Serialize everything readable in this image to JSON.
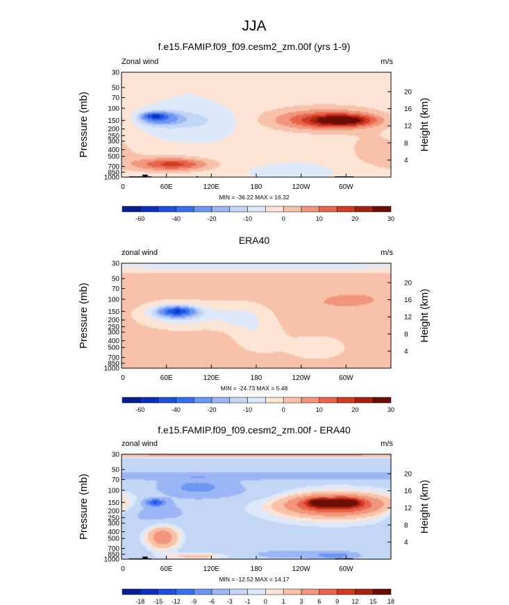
{
  "figure_title": "JJA",
  "colors": {
    "scale_main": [
      "#081d8f",
      "#0a2fbe",
      "#1d4fe0",
      "#3a6ef0",
      "#6d95f2",
      "#9bb6f4",
      "#c4d6f6",
      "#dde9fa",
      "#fde4d5",
      "#f8c2aa",
      "#f1957d",
      "#e8644a",
      "#d13b22",
      "#a5210f",
      "#6b0d05"
    ],
    "scale_diff": [
      "#081d8f",
      "#0a2fbe",
      "#1d4fe0",
      "#3a6ef0",
      "#6d95f2",
      "#9bb6f4",
      "#c4d6f6",
      "#dde9fa",
      "#fde4d5",
      "#f8c2aa",
      "#f1957d",
      "#e8644a",
      "#d13b22",
      "#a5210f",
      "#6b0d05"
    ],
    "topography": "#000000"
  },
  "chart_data": [
    {
      "type": "contour",
      "panel": "model",
      "title": "f.e15.FAMIP.f09_f09.cesm2_zm.00f (yrs 1-9)",
      "left_label": "Zonal wind",
      "right_label": "m/s",
      "ylabel": "Pressure (mb)",
      "y2label": "Height (km)",
      "x_ticks": [
        "0",
        "60E",
        "120E",
        "180",
        "120W",
        "60W"
      ],
      "x_values": [
        0,
        60,
        120,
        180,
        240,
        300
      ],
      "xlim": [
        0,
        360
      ],
      "y_ticks": [
        "30",
        "50",
        "70",
        "100",
        "150",
        "200",
        "250",
        "300",
        "400",
        "500",
        "700",
        "850",
        "1000"
      ],
      "y_values": [
        30,
        50,
        70,
        100,
        150,
        200,
        250,
        300,
        400,
        500,
        700,
        850,
        1000
      ],
      "ylim": [
        1000,
        30
      ],
      "y2_ticks": [
        "4",
        "8",
        "12",
        "16",
        "20"
      ],
      "y2_values_km": [
        4,
        8,
        12,
        16,
        20
      ],
      "stats": "MIN = -36.22  MAX =  16.32",
      "min": -36.22,
      "max": 16.32,
      "colorbar_labels": [
        "-60",
        "-40",
        "-20",
        "-10",
        "0",
        "10",
        "20",
        "30"
      ],
      "background_value": -5,
      "features": [
        {
          "lon": 45,
          "p": 130,
          "dlon": 14,
          "dp": 0.1,
          "value": -36
        },
        {
          "lon": 50,
          "p": 140,
          "dlon": 28,
          "dp": 0.22,
          "value": -25
        },
        {
          "lon": 85,
          "p": 150,
          "dlon": 65,
          "dp": 0.38,
          "value": -12
        },
        {
          "lon": 295,
          "p": 150,
          "dlon": 35,
          "dp": 0.16,
          "value": 16
        },
        {
          "lon": 280,
          "p": 150,
          "dlon": 70,
          "dp": 0.3,
          "value": 9
        },
        {
          "lon": 270,
          "p": 140,
          "dlon": 95,
          "dp": 0.55,
          "value": 4
        },
        {
          "lon": 70,
          "p": 650,
          "dlon": 45,
          "dp": 0.18,
          "value": 8
        },
        {
          "lon": 60,
          "p": 650,
          "dlon": 70,
          "dp": 0.35,
          "value": 4
        },
        {
          "lon": 340,
          "p": 400,
          "dlon": 40,
          "dp": 0.5,
          "value": 3
        },
        {
          "lon": 215,
          "p": 800,
          "dlon": 60,
          "dp": 0.15,
          "value": -6
        }
      ],
      "topography": [
        {
          "lon_start": 10,
          "lon_end": 40,
          "p_top": 975
        },
        {
          "lon_start": 28,
          "lon_end": 35,
          "p_top": 920
        },
        {
          "lon_start": 100,
          "lon_end": 102,
          "p_top": 970
        },
        {
          "lon_start": 285,
          "lon_end": 310,
          "p_top": 975
        }
      ]
    },
    {
      "type": "contour",
      "panel": "obs",
      "title": "ERA40",
      "left_label": "zonal wind",
      "right_label": "m/s",
      "ylabel": "Pressure (mb)",
      "y2label": "Height (km)",
      "x_ticks": [
        "0",
        "60E",
        "120E",
        "180",
        "120W",
        "60W"
      ],
      "x_values": [
        0,
        60,
        120,
        180,
        240,
        300
      ],
      "xlim": [
        0,
        360
      ],
      "y_ticks": [
        "30",
        "50",
        "70",
        "100",
        "150",
        "200",
        "250",
        "300",
        "400",
        "500",
        "700",
        "850",
        "1000"
      ],
      "y_values": [
        30,
        50,
        70,
        100,
        150,
        200,
        250,
        300,
        400,
        500,
        700,
        850,
        1000
      ],
      "ylim": [
        1000,
        30
      ],
      "y2_ticks": [
        "4",
        "8",
        "12",
        "16",
        "20"
      ],
      "y2_values_km": [
        4,
        8,
        12,
        16,
        20
      ],
      "stats": "MIN = -24.73  MAX =  5.48",
      "min": -24.73,
      "max": 5.48,
      "colorbar_labels": [
        "-60",
        "-40",
        "-20",
        "-10",
        "0",
        "10",
        "20",
        "30"
      ],
      "background_value": 2,
      "features": [
        {
          "lon": 180,
          "p": 33,
          "dlon": 400,
          "dp": 0.2,
          "value": -7
        },
        {
          "lon": 75,
          "p": 150,
          "dlon": 18,
          "dp": 0.12,
          "value": -24
        },
        {
          "lon": 72,
          "p": 150,
          "dlon": 30,
          "dp": 0.22,
          "value": -16
        },
        {
          "lon": 80,
          "p": 170,
          "dlon": 50,
          "dp": 0.4,
          "value": -9
        },
        {
          "lon": 160,
          "p": 180,
          "dlon": 35,
          "dp": 0.45,
          "value": -6
        },
        {
          "lon": 185,
          "p": 350,
          "dlon": 30,
          "dp": 0.5,
          "value": -4
        },
        {
          "lon": 320,
          "p": 100,
          "dlon": 50,
          "dp": 0.35,
          "value": 5
        },
        {
          "lon": 280,
          "p": 110,
          "dlon": 45,
          "dp": 0.3,
          "value": 4
        },
        {
          "lon": 85,
          "p": 700,
          "dlon": 50,
          "dp": 0.3,
          "value": 4
        },
        {
          "lon": 260,
          "p": 500,
          "dlon": 40,
          "dp": 0.4,
          "value": -3
        }
      ],
      "topography": []
    },
    {
      "type": "contour",
      "panel": "difference",
      "title": "f.e15.FAMIP.f09_f09.cesm2_zm.00f - ERA40",
      "left_label": "zonal wind",
      "right_label": "m/s",
      "ylabel": "Pressure (mb)",
      "y2label": "Height (km)",
      "x_ticks": [
        "0",
        "60E",
        "120E",
        "180",
        "120W",
        "60W"
      ],
      "x_values": [
        0,
        60,
        120,
        180,
        240,
        300
      ],
      "xlim": [
        0,
        360
      ],
      "y_ticks": [
        "30",
        "50",
        "70",
        "100",
        "150",
        "200",
        "250",
        "300",
        "400",
        "500",
        "700",
        "850",
        "1000"
      ],
      "y_values": [
        30,
        50,
        70,
        100,
        150,
        200,
        250,
        300,
        400,
        500,
        700,
        850,
        1000
      ],
      "ylim": [
        1000,
        30
      ],
      "y2_ticks": [
        "4",
        "8",
        "12",
        "16",
        "20"
      ],
      "y2_values_km": [
        4,
        8,
        12,
        16,
        20
      ],
      "stats": "MIN = -12.52  MAX =  14.17",
      "min": -12.52,
      "max": 14.17,
      "colorbar_labels": [
        "-18",
        "-15",
        "-12",
        "-9",
        "-6",
        "-3",
        "-1",
        "0",
        "1",
        "3",
        "6",
        "9",
        "12",
        "15",
        "18"
      ],
      "background_value": -2,
      "features": [
        {
          "lon": 180,
          "p": 30,
          "dlon": 400,
          "dp": 0.1,
          "value": 4
        },
        {
          "lon": 180,
          "p": 62,
          "dlon": 400,
          "dp": 0.12,
          "value": -5
        },
        {
          "lon": 45,
          "p": 150,
          "dlon": 14,
          "dp": 0.12,
          "value": -12
        },
        {
          "lon": 100,
          "p": 90,
          "dlon": 45,
          "dp": 0.3,
          "value": -7
        },
        {
          "lon": 40,
          "p": 210,
          "dlon": 45,
          "dp": 0.4,
          "value": -5
        },
        {
          "lon": 170,
          "p": 110,
          "dlon": 60,
          "dp": 0.3,
          "value": -3
        },
        {
          "lon": 265,
          "p": 150,
          "dlon": 14,
          "dp": 0.12,
          "value": 14
        },
        {
          "lon": 300,
          "p": 150,
          "dlon": 16,
          "dp": 0.12,
          "value": 13
        },
        {
          "lon": 285,
          "p": 160,
          "dlon": 55,
          "dp": 0.28,
          "value": 8
        },
        {
          "lon": 285,
          "p": 170,
          "dlon": 95,
          "dp": 0.55,
          "value": 3
        },
        {
          "lon": 55,
          "p": 480,
          "dlon": 22,
          "dp": 0.4,
          "value": 5
        },
        {
          "lon": 285,
          "p": 880,
          "dlon": 25,
          "dp": 0.1,
          "value": -8
        },
        {
          "lon": 230,
          "p": 850,
          "dlon": 60,
          "dp": 0.15,
          "value": -4
        },
        {
          "lon": 100,
          "p": 900,
          "dlon": 40,
          "dp": 0.1,
          "value": 2
        }
      ],
      "topography": [
        {
          "lon_start": 10,
          "lon_end": 40,
          "p_top": 975
        },
        {
          "lon_start": 28,
          "lon_end": 35,
          "p_top": 920
        },
        {
          "lon_start": 285,
          "lon_end": 310,
          "p_top": 975
        }
      ]
    }
  ]
}
